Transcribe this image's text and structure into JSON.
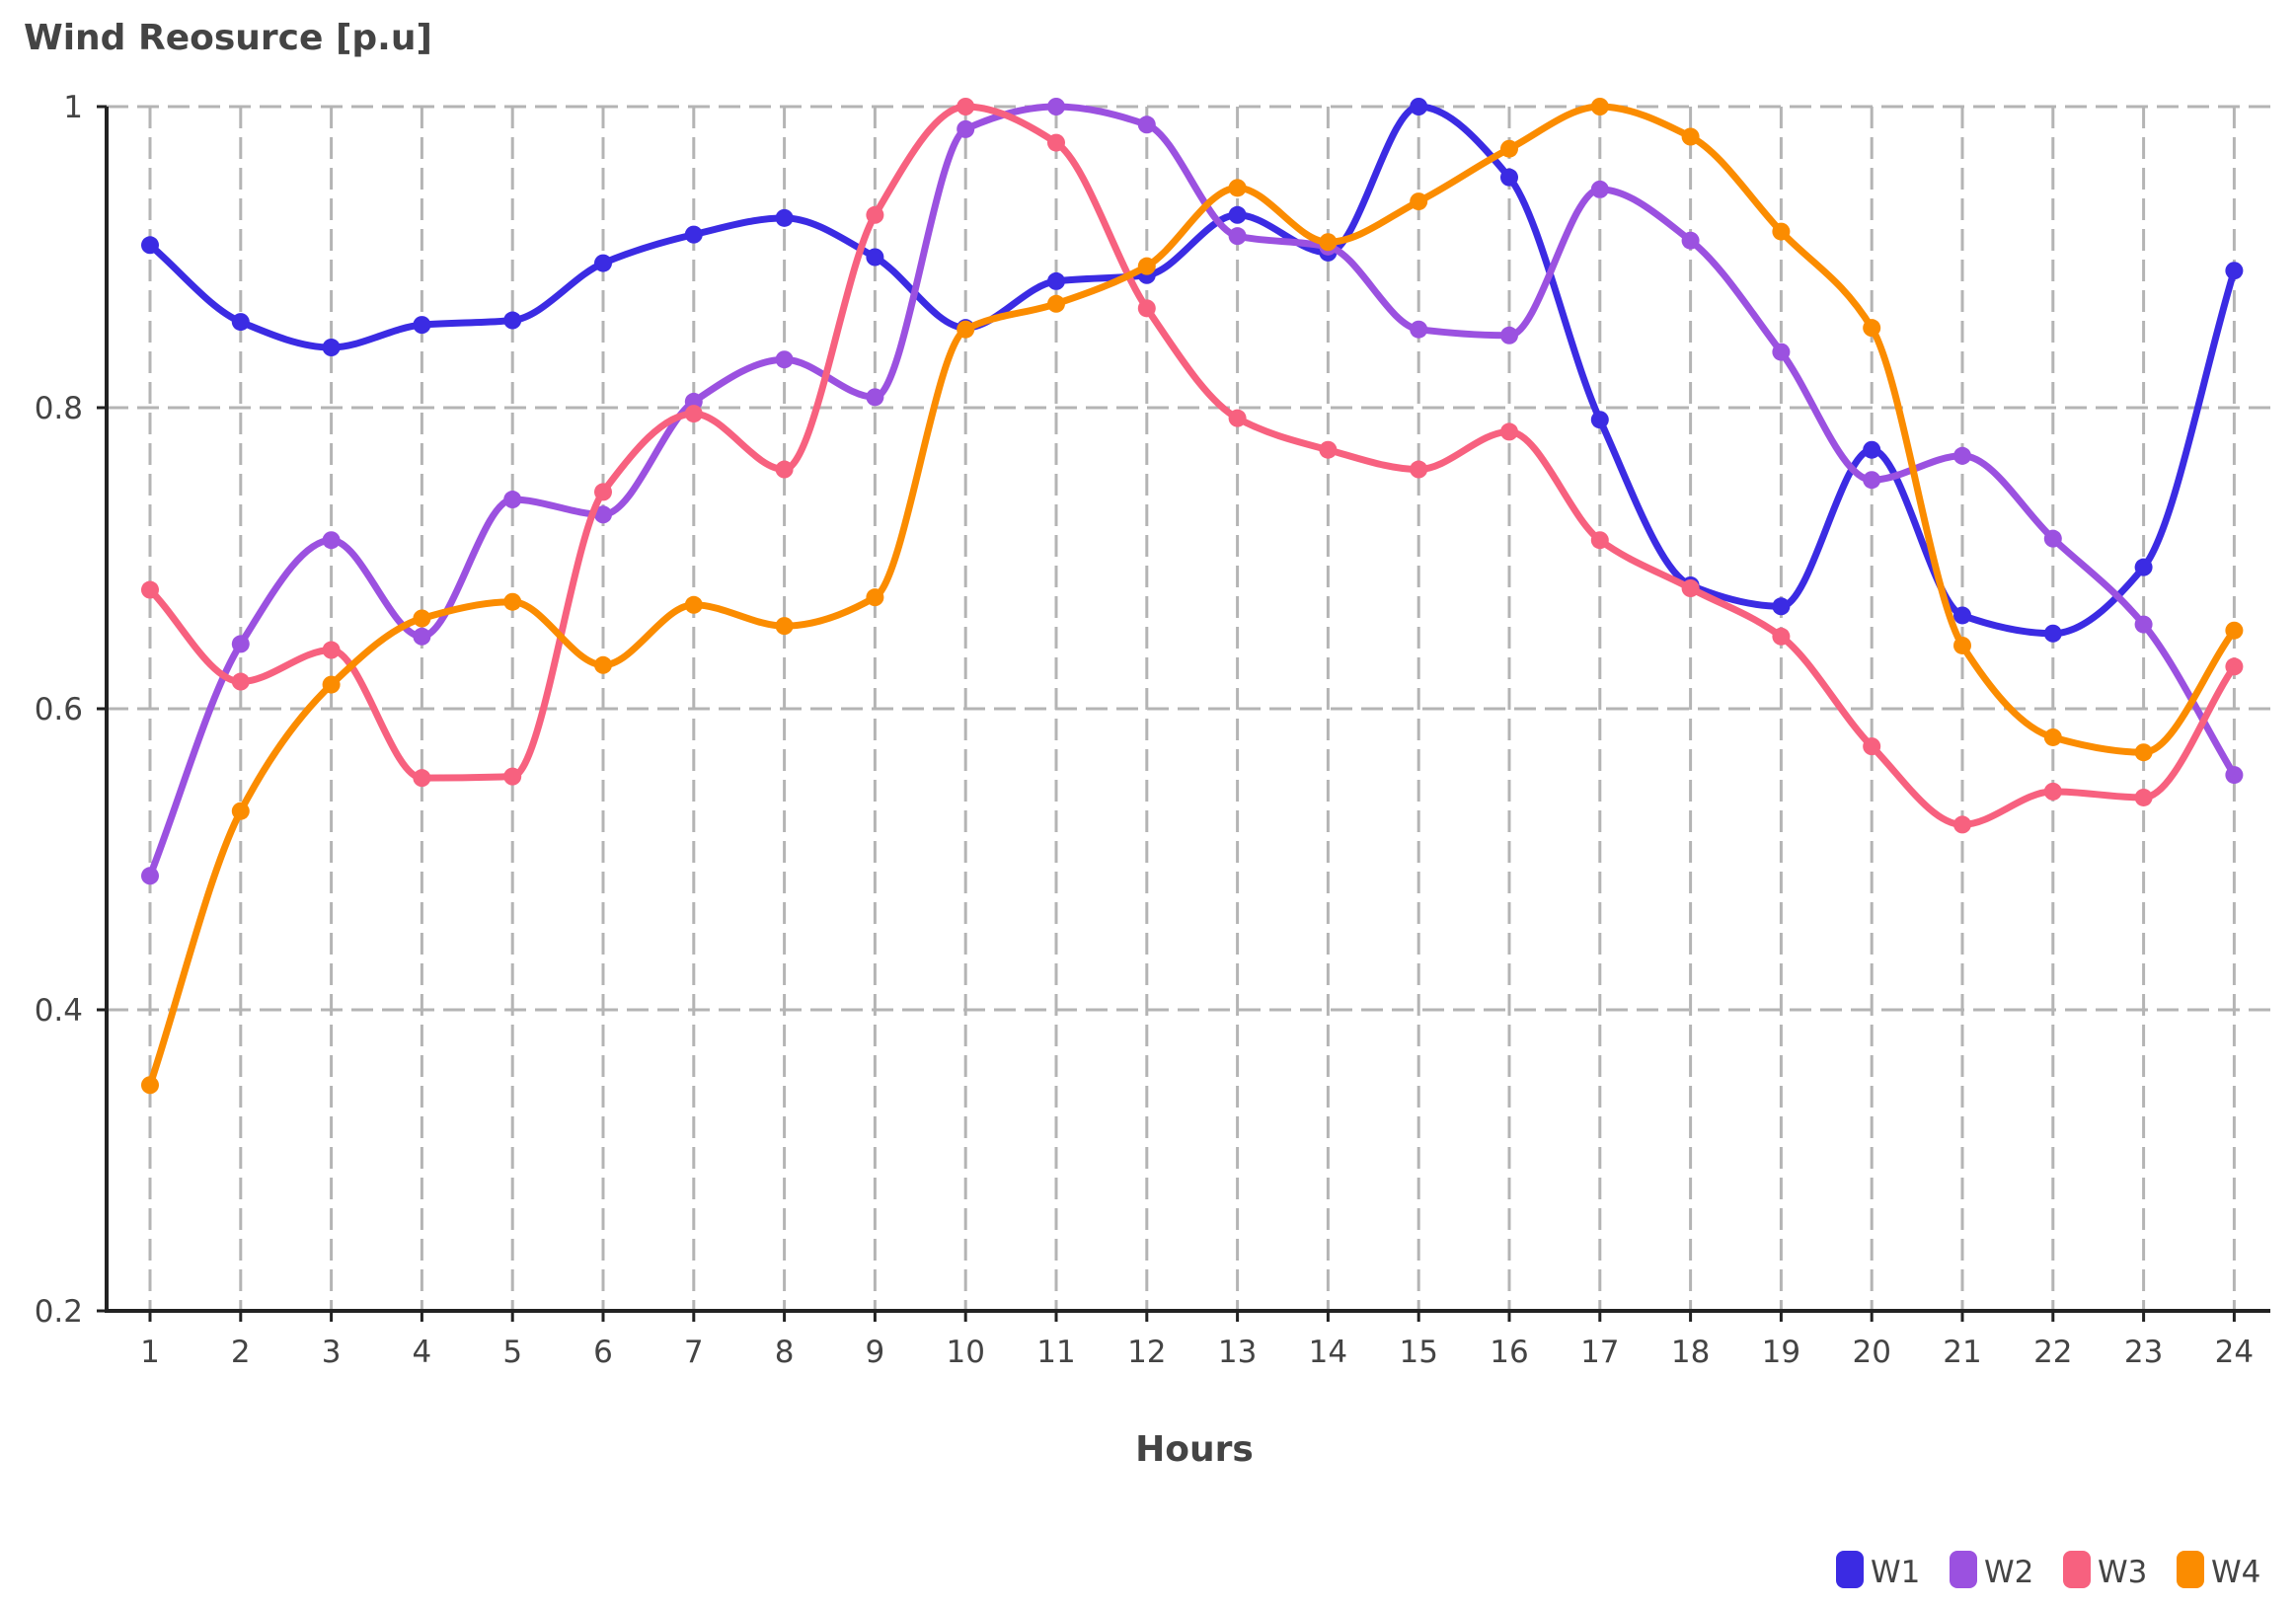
{
  "chart_data": {
    "type": "line",
    "title": "",
    "ylabel": "Wind Reosurce [p.u]",
    "xlabel": "Hours",
    "x": [
      1,
      2,
      3,
      4,
      5,
      6,
      7,
      8,
      9,
      10,
      11,
      12,
      13,
      14,
      15,
      16,
      17,
      18,
      19,
      20,
      21,
      22,
      23,
      24
    ],
    "x_tick_labels": [
      "1",
      "2",
      "3",
      "4",
      "5",
      "6",
      "7",
      "8",
      "9",
      "10",
      "11",
      "12",
      "13",
      "14",
      "15",
      "16",
      "17",
      "18",
      "19",
      "20",
      "21",
      "22",
      "23",
      "24"
    ],
    "ylim": [
      0.2,
      1.0
    ],
    "y_ticks": [
      0.2,
      0.4,
      0.6,
      0.8,
      1.0
    ],
    "y_tick_labels": [
      "0.2",
      "0.4",
      "0.6",
      "0.8",
      "1"
    ],
    "grid": true,
    "legend_position": "bottom-right",
    "series": [
      {
        "name": "W1",
        "color": "#3b2be3",
        "values": [
          0.908,
          0.857,
          0.84,
          0.855,
          0.858,
          0.896,
          0.915,
          0.926,
          0.9,
          0.853,
          0.884,
          0.888,
          0.928,
          0.903,
          1.0,
          0.953,
          0.792,
          0.682,
          0.668,
          0.772,
          0.662,
          0.65,
          0.694,
          0.891
        ]
      },
      {
        "name": "W2",
        "color": "#9b51e0",
        "values": [
          0.489,
          0.643,
          0.712,
          0.648,
          0.739,
          0.729,
          0.804,
          0.832,
          0.807,
          0.985,
          1.0,
          0.988,
          0.914,
          0.907,
          0.852,
          0.848,
          0.945,
          0.911,
          0.837,
          0.752,
          0.768,
          0.713,
          0.656,
          0.556
        ]
      },
      {
        "name": "W3",
        "color": "#f7617f",
        "values": [
          0.679,
          0.618,
          0.639,
          0.554,
          0.555,
          0.744,
          0.796,
          0.759,
          0.928,
          1.0,
          0.976,
          0.866,
          0.793,
          0.772,
          0.759,
          0.784,
          0.712,
          0.68,
          0.648,
          0.575,
          0.523,
          0.545,
          0.541,
          0.628
        ]
      },
      {
        "name": "W4",
        "color": "#fb8c00",
        "values": [
          0.35,
          0.532,
          0.616,
          0.66,
          0.671,
          0.629,
          0.669,
          0.655,
          0.674,
          0.852,
          0.869,
          0.894,
          0.946,
          0.91,
          0.937,
          0.972,
          1.0,
          0.98,
          0.917,
          0.853,
          0.642,
          0.581,
          0.571,
          0.652
        ]
      }
    ]
  }
}
